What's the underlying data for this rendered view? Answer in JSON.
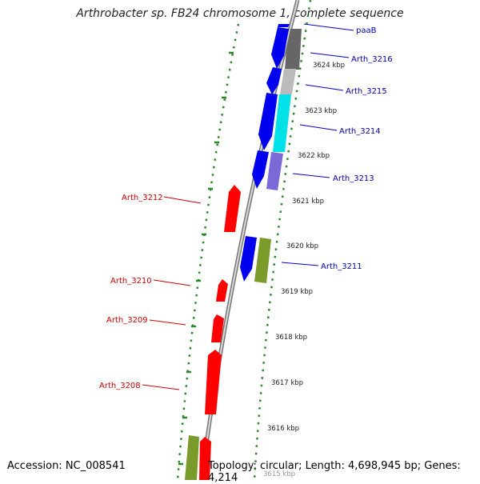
{
  "title": "Arthrobacter sp. FB24 chromosome 1, complete sequence",
  "footer": {
    "accession": "Accession: NC_008541",
    "topology": "Topology: circular; Length: 4,698,945 bp; Genes: 4,214"
  },
  "colors": {
    "reverse_label": "#cc0000",
    "forward_label": "#0000aa",
    "backbone": "#888888",
    "dotted_track": "#2a8a2a",
    "red_gene": "#ff0000",
    "blue_gene": "#0000ee",
    "olive_gene": "#7a9a2a",
    "gray_gene": "#666666",
    "light_gray_gene": "#bbbbbb",
    "cyan_gene": "#00e8e8",
    "lavender_gene": "#7a6ad8"
  },
  "kbp_ticks": [
    "3624 kbp",
    "3623 kbp",
    "3622 kbp",
    "3621 kbp",
    "3620 kbp",
    "3619 kbp",
    "3618 kbp",
    "3617 kbp",
    "3616 kbp",
    "3615 kbp"
  ],
  "forward_genes": [
    "paaB",
    "Arth_3216",
    "Arth_3215",
    "Arth_3214",
    "Arth_3213",
    "Arth_3211"
  ],
  "reverse_genes": [
    "Arth_3212",
    "Arth_3210",
    "Arth_3209",
    "Arth_3208"
  ]
}
